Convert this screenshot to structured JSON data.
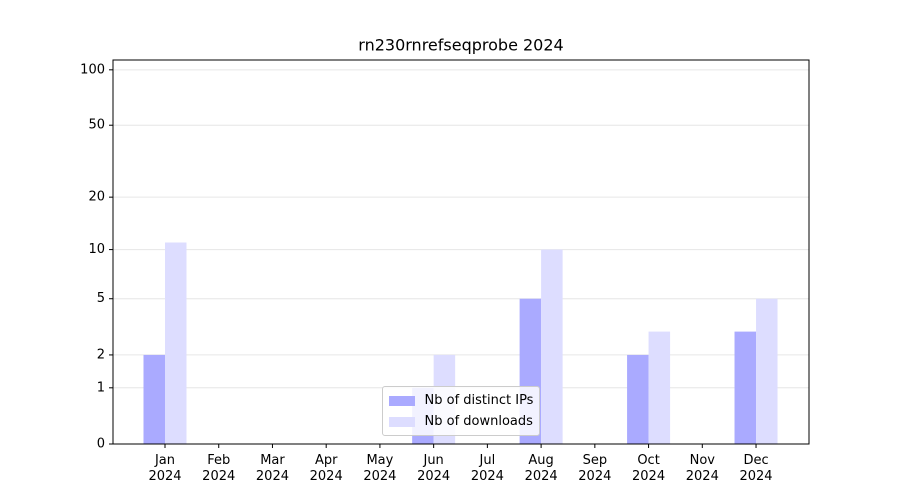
{
  "chart_data": {
    "type": "bar",
    "title": "rn230rnrefseqprobe 2024",
    "categories": [
      "Jan 2024",
      "Feb 2024",
      "Mar 2024",
      "Apr 2024",
      "May 2024",
      "Jun 2024",
      "Jul 2024",
      "Aug 2024",
      "Sep 2024",
      "Oct 2024",
      "Nov 2024",
      "Dec 2024"
    ],
    "series": [
      {
        "name": "Nb of distinct IPs",
        "color": "#aaaaff",
        "values": [
          2,
          0,
          0,
          0,
          0,
          1,
          0,
          5,
          0,
          2,
          0,
          3
        ]
      },
      {
        "name": "Nb of downloads",
        "color": "#ddddff",
        "values": [
          11,
          0,
          0,
          0,
          0,
          2,
          0,
          10,
          0,
          3,
          0,
          5
        ]
      }
    ],
    "yscale": "log1p",
    "ylim": [
      0,
      113
    ],
    "yticks": [
      0,
      1,
      2,
      5,
      10,
      20,
      50,
      100
    ],
    "grid": true,
    "legend": "lower center"
  }
}
